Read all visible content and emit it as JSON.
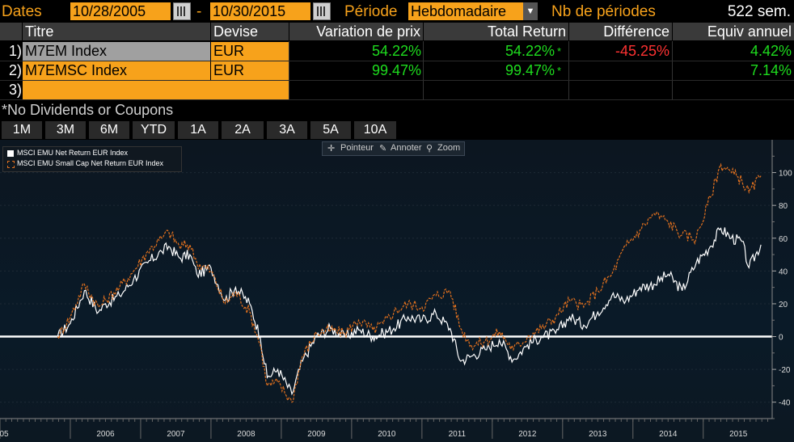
{
  "toolbar": {
    "dates_label": "Dates",
    "start_date": "10/28/2005",
    "dash": "-",
    "end_date": "10/30/2015",
    "period_label": "Période",
    "period_value": "Hebdomadaire",
    "nb_periods_label": "Nb de périodes",
    "nb_periods_value": "522 sem."
  },
  "table": {
    "headers": [
      "Titre",
      "Devise",
      "Variation de prix",
      "Total Return",
      "Différence",
      "Equiv annuel"
    ],
    "rows": [
      {
        "num": "1)",
        "title": "M7EM Index",
        "currency": "EUR",
        "price_var": "54.22%",
        "total_return": "54.22%",
        "star": "*",
        "difference": "-45.25%",
        "annual": "4.42%"
      },
      {
        "num": "2)",
        "title": "M7EMSC Index",
        "currency": "EUR",
        "price_var": "99.47%",
        "total_return": "99.47%",
        "star": "*",
        "difference": "",
        "annual": "7.14%"
      },
      {
        "num": "3)",
        "title": "",
        "currency": "",
        "price_var": "",
        "total_return": "",
        "star": "",
        "difference": "",
        "annual": ""
      }
    ],
    "footnote": "*No Dividends or Coupons"
  },
  "range_tabs": [
    "1M",
    "3M",
    "6M",
    "YTD",
    "1A",
    "2A",
    "3A",
    "5A",
    "10A"
  ],
  "chart_tools": {
    "pointer": "Pointeur",
    "annotate": "Annoter",
    "zoom": "Zoom"
  },
  "colors": {
    "accent": "#f7a21b",
    "positive": "#1edc1e",
    "negative": "#ff3232",
    "series1": "#ffffff",
    "series2": "#e0701e"
  },
  "chart_data": {
    "type": "line",
    "legend_position": "top-left",
    "y_axis_side": "right",
    "ylim": [
      -50,
      120
    ],
    "yticks": [
      -40,
      -20,
      0,
      20,
      40,
      60,
      80,
      100
    ],
    "xlim": [
      2005.0,
      2015.98
    ],
    "xtick_labels": [
      "05",
      "2006",
      "2007",
      "2008",
      "2009",
      "2010",
      "2011",
      "2012",
      "2013",
      "2014",
      "2015"
    ],
    "zero_line": true,
    "series": [
      {
        "name": "MSCI EMU Net Return EUR Index",
        "color": "#ffffff",
        "x": [
          2005.82,
          2006.0,
          2006.2,
          2006.4,
          2006.5,
          2006.7,
          2006.9,
          2007.1,
          2007.3,
          2007.4,
          2007.55,
          2007.7,
          2007.8,
          2008.0,
          2008.2,
          2008.35,
          2008.55,
          2008.7,
          2008.8,
          2008.95,
          2009.15,
          2009.3,
          2009.5,
          2009.7,
          2009.9,
          2010.1,
          2010.3,
          2010.45,
          2010.6,
          2010.8,
          2011.0,
          2011.2,
          2011.4,
          2011.55,
          2011.7,
          2011.9,
          2012.1,
          2012.3,
          2012.5,
          2012.7,
          2012.9,
          2013.1,
          2013.3,
          2013.5,
          2013.7,
          2013.9,
          2014.1,
          2014.3,
          2014.5,
          2014.7,
          2014.9,
          2015.1,
          2015.25,
          2015.4,
          2015.55,
          2015.65,
          2015.82
        ],
        "values": [
          0,
          8,
          28,
          15,
          20,
          25,
          35,
          45,
          52,
          55,
          48,
          50,
          38,
          42,
          22,
          30,
          20,
          0,
          -25,
          -20,
          -35,
          -15,
          0,
          5,
          0,
          4,
          0,
          2,
          5,
          12,
          10,
          14,
          5,
          -15,
          -12,
          -8,
          -2,
          -14,
          -5,
          0,
          2,
          12,
          7,
          15,
          25,
          22,
          30,
          32,
          38,
          28,
          45,
          55,
          66,
          60,
          58,
          42,
          56
        ]
      },
      {
        "name": "MSCI EMU Small Cap Net Return EUR Index",
        "color": "#e0701e",
        "x": [
          2005.82,
          2006.0,
          2006.2,
          2006.4,
          2006.5,
          2006.7,
          2006.9,
          2007.1,
          2007.3,
          2007.4,
          2007.55,
          2007.7,
          2007.8,
          2008.0,
          2008.2,
          2008.35,
          2008.55,
          2008.7,
          2008.8,
          2008.95,
          2009.15,
          2009.3,
          2009.5,
          2009.7,
          2009.9,
          2010.1,
          2010.3,
          2010.45,
          2010.6,
          2010.8,
          2011.0,
          2011.2,
          2011.4,
          2011.55,
          2011.7,
          2011.9,
          2012.1,
          2012.3,
          2012.5,
          2012.7,
          2012.9,
          2013.1,
          2013.3,
          2013.5,
          2013.7,
          2013.9,
          2014.1,
          2014.3,
          2014.5,
          2014.7,
          2014.9,
          2015.1,
          2015.25,
          2015.4,
          2015.55,
          2015.65,
          2015.82
        ],
        "values": [
          0,
          12,
          32,
          18,
          22,
          30,
          40,
          52,
          60,
          64,
          55,
          56,
          45,
          40,
          20,
          27,
          15,
          -5,
          -30,
          -28,
          -40,
          -12,
          2,
          4,
          2,
          10,
          4,
          8,
          15,
          20,
          18,
          25,
          28,
          5,
          -5,
          -3,
          3,
          -8,
          0,
          5,
          12,
          22,
          18,
          28,
          38,
          55,
          65,
          75,
          70,
          62,
          60,
          85,
          105,
          100,
          95,
          88,
          98
        ]
      }
    ]
  }
}
